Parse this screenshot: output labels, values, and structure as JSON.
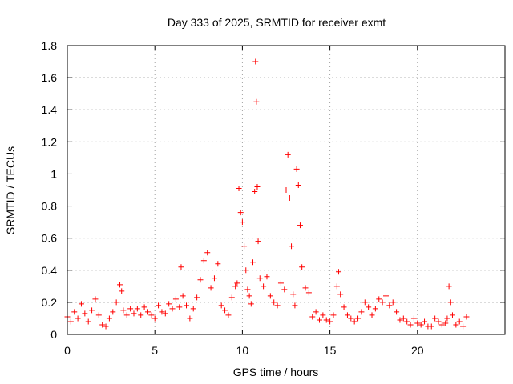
{
  "chart_data": {
    "type": "scatter",
    "title": "Day 333 of 2025, SRMTID for receiver exmt",
    "xlabel": "GPS time / hours",
    "ylabel": "SRMTID / TECUs",
    "xlim": [
      0,
      25
    ],
    "ylim": [
      0,
      1.8
    ],
    "xticks": [
      0,
      5,
      10,
      15,
      20
    ],
    "xtick_labels": [
      "0",
      "5",
      "10",
      "15",
      "20"
    ],
    "yticks": [
      0,
      0.2,
      0.4,
      0.6,
      0.8,
      1,
      1.2,
      1.4,
      1.6,
      1.8
    ],
    "ytick_labels": [
      "0",
      "0.2",
      "0.4",
      "0.6",
      "0.8",
      "1",
      "1.2",
      "1.4",
      "1.6",
      "1.8"
    ],
    "grid": true,
    "marker": "+",
    "series": [
      {
        "name": "SRMTID",
        "color": "#ff0000",
        "x": [
          0.0,
          0.2,
          0.4,
          0.6,
          0.8,
          1.0,
          1.2,
          1.4,
          1.6,
          1.8,
          2.0,
          2.2,
          2.4,
          2.6,
          2.8,
          3.0,
          3.1,
          3.2,
          3.4,
          3.6,
          3.8,
          4.0,
          4.2,
          4.4,
          4.6,
          4.8,
          5.0,
          5.2,
          5.4,
          5.6,
          5.8,
          6.0,
          6.2,
          6.4,
          6.5,
          6.6,
          6.8,
          7.0,
          7.2,
          7.4,
          7.6,
          7.8,
          8.0,
          8.2,
          8.4,
          8.6,
          8.8,
          9.0,
          9.2,
          9.4,
          9.6,
          9.7,
          9.8,
          9.9,
          10.0,
          10.1,
          10.2,
          10.3,
          10.4,
          10.5,
          10.6,
          10.7,
          10.75,
          10.8,
          10.85,
          10.9,
          11.0,
          11.2,
          11.4,
          11.6,
          11.8,
          12.0,
          12.2,
          12.4,
          12.5,
          12.6,
          12.7,
          12.8,
          12.9,
          13.0,
          13.1,
          13.2,
          13.3,
          13.4,
          13.6,
          13.8,
          14.0,
          14.2,
          14.4,
          14.6,
          14.8,
          15.0,
          15.2,
          15.4,
          15.5,
          15.6,
          15.8,
          16.0,
          16.2,
          16.4,
          16.6,
          16.8,
          17.0,
          17.2,
          17.4,
          17.6,
          17.8,
          18.0,
          18.2,
          18.4,
          18.6,
          18.8,
          19.0,
          19.2,
          19.4,
          19.6,
          19.8,
          20.0,
          20.2,
          20.4,
          20.6,
          20.8,
          21.0,
          21.2,
          21.4,
          21.6,
          21.7,
          21.8,
          21.9,
          22.0,
          22.2,
          22.4,
          22.6,
          22.8
        ],
        "y": [
          0.11,
          0.08,
          0.14,
          0.1,
          0.19,
          0.13,
          0.08,
          0.15,
          0.22,
          0.12,
          0.06,
          0.05,
          0.1,
          0.14,
          0.2,
          0.31,
          0.27,
          0.15,
          0.12,
          0.16,
          0.13,
          0.16,
          0.12,
          0.17,
          0.14,
          0.12,
          0.1,
          0.18,
          0.14,
          0.13,
          0.19,
          0.16,
          0.22,
          0.17,
          0.42,
          0.24,
          0.18,
          0.1,
          0.16,
          0.23,
          0.34,
          0.46,
          0.51,
          0.29,
          0.35,
          0.44,
          0.18,
          0.15,
          0.12,
          0.23,
          0.3,
          0.32,
          0.91,
          0.76,
          0.7,
          0.55,
          0.4,
          0.28,
          0.24,
          0.19,
          0.45,
          0.89,
          1.7,
          1.45,
          0.92,
          0.58,
          0.35,
          0.3,
          0.36,
          0.24,
          0.2,
          0.18,
          0.32,
          0.28,
          0.9,
          1.12,
          0.85,
          0.55,
          0.25,
          0.18,
          1.03,
          0.93,
          0.68,
          0.42,
          0.29,
          0.26,
          0.11,
          0.14,
          0.09,
          0.12,
          0.09,
          0.08,
          0.12,
          0.3,
          0.39,
          0.25,
          0.17,
          0.12,
          0.1,
          0.08,
          0.1,
          0.14,
          0.2,
          0.17,
          0.12,
          0.16,
          0.22,
          0.2,
          0.24,
          0.18,
          0.2,
          0.14,
          0.09,
          0.1,
          0.08,
          0.06,
          0.1,
          0.07,
          0.06,
          0.08,
          0.05,
          0.05,
          0.1,
          0.08,
          0.06,
          0.07,
          0.1,
          0.3,
          0.2,
          0.12,
          0.06,
          0.08,
          0.05,
          0.11
        ]
      }
    ]
  }
}
